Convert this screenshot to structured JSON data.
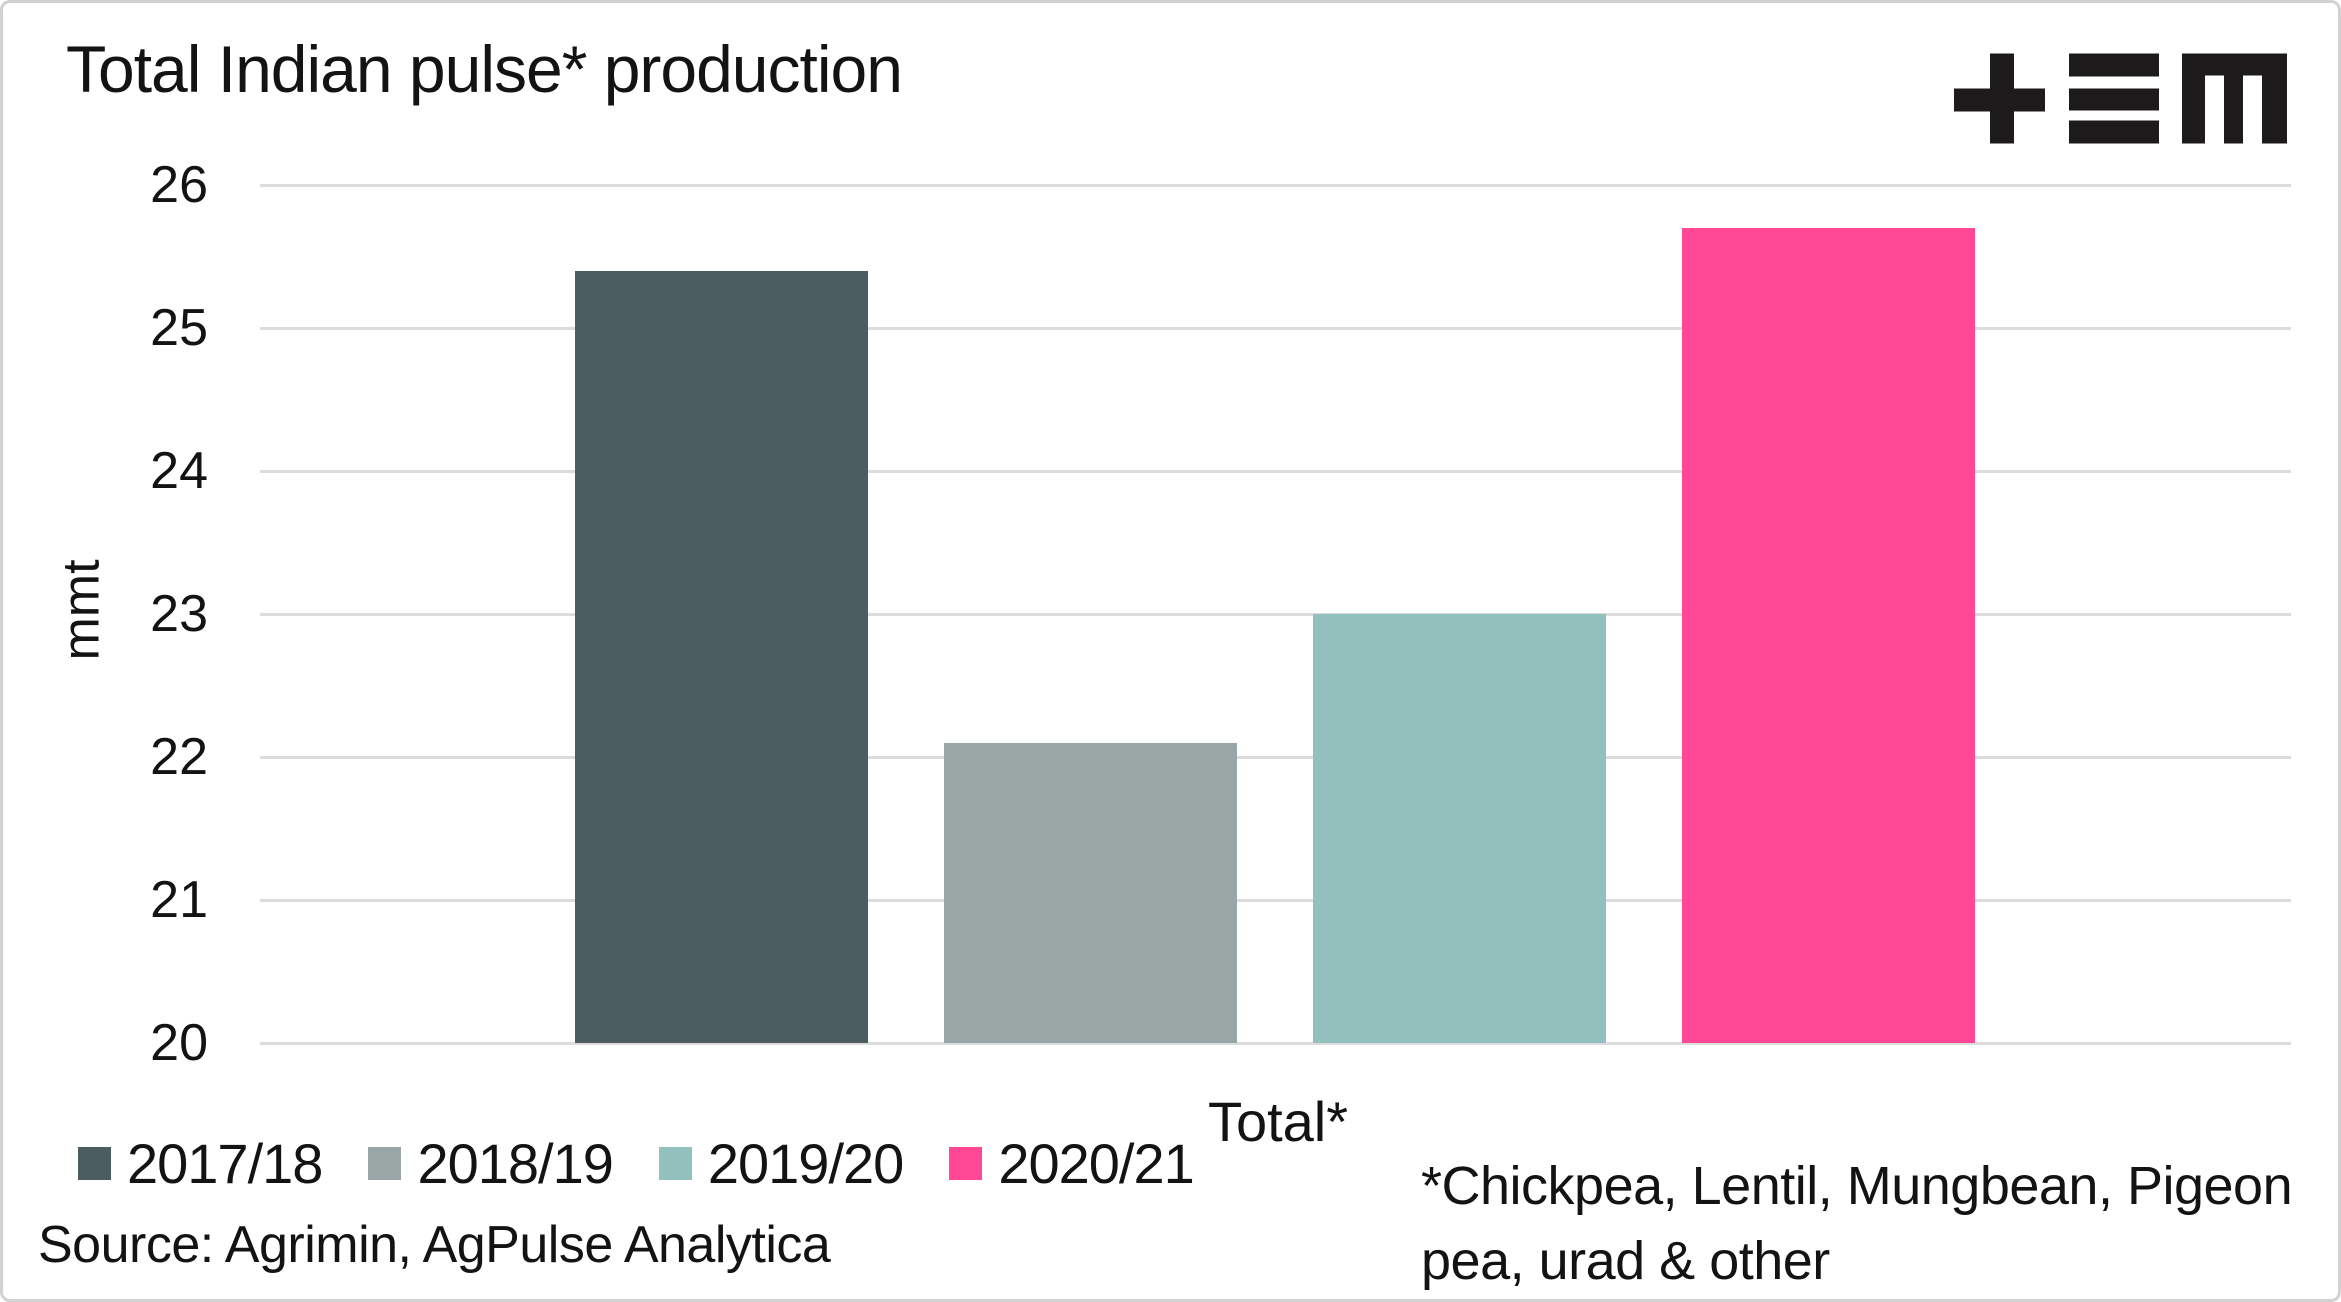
{
  "title": "Total Indian pulse* production",
  "logo": {
    "name": "tem-logo",
    "color": "#1d1a1b"
  },
  "chart_data": {
    "type": "bar",
    "categories": [
      "Total*"
    ],
    "series": [
      {
        "name": "2017/18",
        "color": "#4b5d60",
        "values": [
          25.4
        ]
      },
      {
        "name": "2018/19",
        "color": "#9aa5a6",
        "values": [
          22.1
        ]
      },
      {
        "name": "2019/20",
        "color": "#92c0bd",
        "values": [
          23.0
        ]
      },
      {
        "name": "2020/21",
        "color": "#ff4796",
        "values": [
          25.7
        ]
      }
    ],
    "title": "Total Indian pulse* production",
    "xlabel": "",
    "ylabel": "mmt",
    "ylim": [
      20,
      26
    ],
    "yticks": [
      26,
      25,
      24,
      23,
      22,
      21,
      20
    ],
    "grid": true,
    "gridline_color": "#dcdcdc",
    "legend_position": "bottom-left"
  },
  "footnote": {
    "line1": "*Chickpea, Lentil, Mungbean, Pigeon",
    "line2": "pea, urad & other"
  },
  "source": "Source: Agrimin, AgPulse Analytica"
}
